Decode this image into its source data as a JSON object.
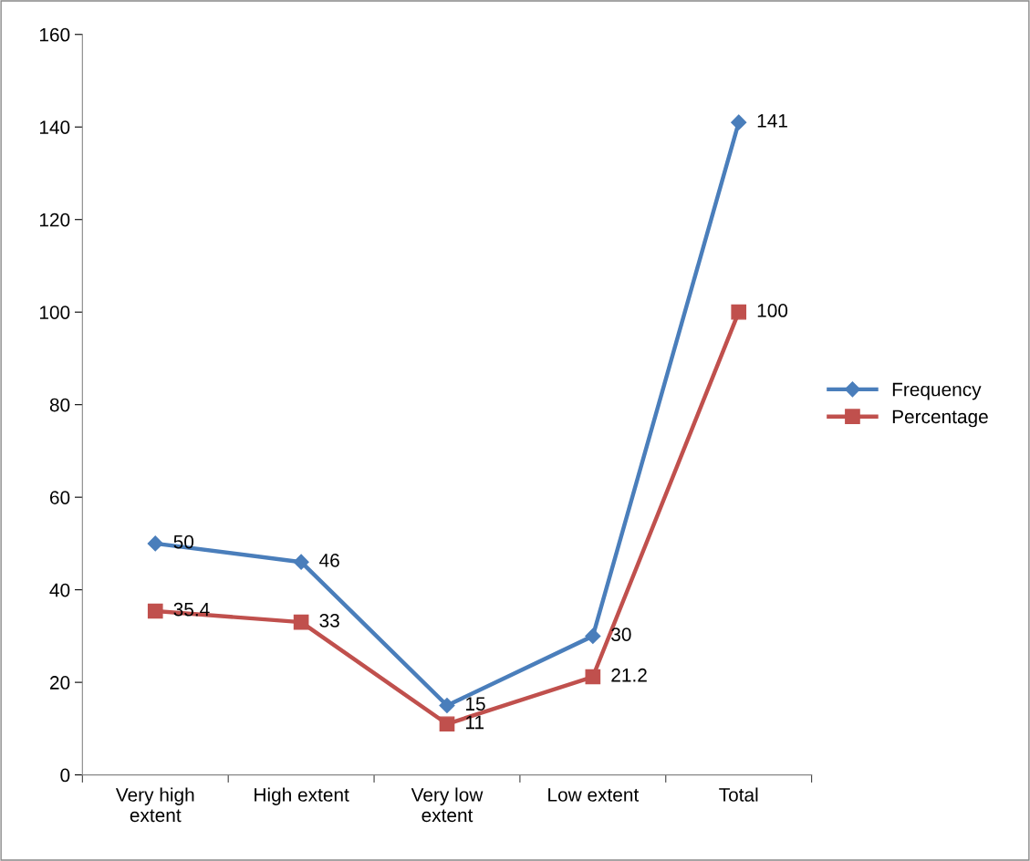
{
  "chart_data": {
    "type": "line",
    "categories": [
      "Very high\nextent",
      "High extent",
      "Very low\nextent",
      "Low extent",
      "Total"
    ],
    "series": [
      {
        "name": "Frequency",
        "color": "#4a7ebb",
        "marker": "diamond",
        "values": [
          50,
          46,
          15,
          30,
          141
        ]
      },
      {
        "name": "Percentage",
        "color": "#c0504d",
        "marker": "square",
        "values": [
          35.4,
          33,
          11,
          21.2,
          100
        ]
      }
    ],
    "ylim": [
      0,
      160
    ],
    "yticks": [
      0,
      20,
      40,
      60,
      80,
      100,
      120,
      140,
      160
    ],
    "grid": false,
    "legend": "right",
    "data_labels": true,
    "line_style": "solid"
  }
}
